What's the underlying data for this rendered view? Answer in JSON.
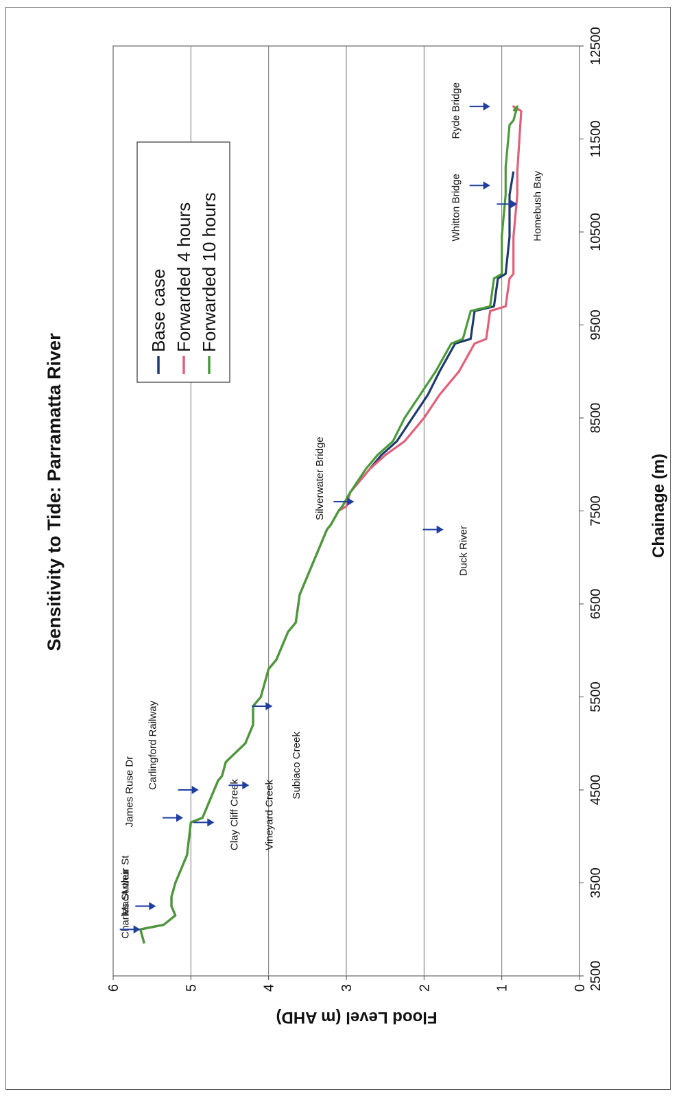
{
  "chart_data": {
    "type": "line",
    "title": "Sensitivity to Tide: Parramatta River",
    "xlabel": "Chainage (m)",
    "ylabel": "Flood Level (m AHD)",
    "xlim": [
      2500,
      12500
    ],
    "ylim": [
      0,
      6
    ],
    "x_ticks": [
      "2500",
      "3500",
      "4500",
      "5500",
      "6500",
      "7500",
      "8500",
      "9500",
      "10500",
      "11500",
      "12500"
    ],
    "y_ticks": [
      "0",
      "1",
      "2",
      "3",
      "4",
      "5",
      "6"
    ],
    "grid": "horizontal",
    "legend": "top-right",
    "colors": {
      "base": "#1f3a6e",
      "fwd4": "#e0607a",
      "fwd10": "#4a9a3a",
      "arrow": "#1f3fa0"
    },
    "series": [
      {
        "name": "Base case",
        "color": "#1f3a6e",
        "x": [
          2850,
          3000,
          3050,
          3150,
          3250,
          3350,
          3500,
          3800,
          4150,
          4200,
          4600,
          4650,
          4800,
          5000,
          5200,
          5400,
          5500,
          5800,
          5900,
          6200,
          6250,
          6300,
          6600,
          7000,
          7300,
          7350,
          7500,
          7550,
          7700,
          7950,
          8100,
          8250,
          8500,
          8750,
          9000,
          9300,
          9350,
          9650,
          9700,
          10000,
          10050,
          10450,
          10900,
          11150
        ],
        "y": [
          5.6,
          5.65,
          5.35,
          5.2,
          5.25,
          5.25,
          5.2,
          5.05,
          5.0,
          4.85,
          4.65,
          4.6,
          4.55,
          4.3,
          4.2,
          4.2,
          4.1,
          4.0,
          3.9,
          3.75,
          3.7,
          3.65,
          3.6,
          3.4,
          3.25,
          3.2,
          3.1,
          3.05,
          2.95,
          2.7,
          2.55,
          2.35,
          2.15,
          1.95,
          1.8,
          1.6,
          1.4,
          1.35,
          1.1,
          1.05,
          0.95,
          0.9,
          0.9,
          0.85
        ]
      },
      {
        "name": "Forwarded 4 hours",
        "color": "#e0607a",
        "x": [
          2850,
          3000,
          3050,
          3150,
          3250,
          3350,
          3500,
          3800,
          4150,
          4200,
          4600,
          4650,
          4800,
          5000,
          5200,
          5400,
          5500,
          5800,
          5900,
          6200,
          6250,
          6300,
          6600,
          7000,
          7300,
          7350,
          7500,
          7550,
          7700,
          7950,
          8100,
          8250,
          8500,
          8750,
          9000,
          9300,
          9350,
          9650,
          9700,
          10000,
          10050,
          10450,
          10900,
          11150,
          11800,
          11850,
          11800
        ],
        "y": [
          5.6,
          5.65,
          5.35,
          5.2,
          5.25,
          5.25,
          5.2,
          5.05,
          5.0,
          4.85,
          4.65,
          4.6,
          4.55,
          4.3,
          4.2,
          4.2,
          4.1,
          4.0,
          3.9,
          3.75,
          3.7,
          3.65,
          3.6,
          3.4,
          3.25,
          3.2,
          3.1,
          3.0,
          2.95,
          2.7,
          2.5,
          2.25,
          2.0,
          1.8,
          1.55,
          1.35,
          1.2,
          1.15,
          0.95,
          0.9,
          0.85,
          0.85,
          0.8,
          0.8,
          0.75,
          0.85,
          0.8
        ]
      },
      {
        "name": "Forwarded 10 hours",
        "color": "#4a9a3a",
        "x": [
          2850,
          3000,
          3050,
          3150,
          3250,
          3350,
          3500,
          3800,
          4150,
          4200,
          4600,
          4650,
          4800,
          5000,
          5200,
          5400,
          5500,
          5800,
          5900,
          6200,
          6250,
          6300,
          6600,
          7000,
          7300,
          7350,
          7500,
          7550,
          7700,
          7950,
          8100,
          8250,
          8500,
          8750,
          9000,
          9300,
          9350,
          9650,
          9700,
          10000,
          10050,
          10450,
          10900,
          11150,
          11200,
          11650,
          11700,
          11850,
          11850,
          11800
        ],
        "y": [
          5.6,
          5.65,
          5.35,
          5.2,
          5.25,
          5.25,
          5.2,
          5.05,
          5.0,
          4.85,
          4.65,
          4.6,
          4.55,
          4.3,
          4.2,
          4.2,
          4.1,
          4.0,
          3.9,
          3.75,
          3.7,
          3.65,
          3.6,
          3.4,
          3.25,
          3.2,
          3.1,
          3.05,
          2.95,
          2.75,
          2.6,
          2.4,
          2.25,
          2.05,
          1.85,
          1.65,
          1.5,
          1.4,
          1.15,
          1.1,
          1.0,
          1.0,
          0.95,
          0.95,
          0.95,
          0.9,
          0.85,
          0.8,
          0.8,
          0.85
        ]
      }
    ],
    "annotations": [
      {
        "text": "Charles St weir",
        "label_x": 2900,
        "label_y": 5.8,
        "arrow_x": 3000,
        "arrow_y": 5.65
      },
      {
        "text": "MacArthur St",
        "label_x": 3150,
        "label_y": 5.8,
        "arrow_x": 3250,
        "arrow_y": 5.45
      },
      {
        "text": "James Ruse Dr",
        "label_x": 4100,
        "label_y": 5.75,
        "arrow_x": 4200,
        "arrow_y": 5.1
      },
      {
        "text": "Carlingford Railway",
        "label_x": 4500,
        "label_y": 5.45,
        "arrow_x": 4500,
        "arrow_y": 4.9
      },
      {
        "text": "Clay Cliff Creek",
        "label_x": 3850,
        "label_y": 4.4,
        "arrow_x": 4150,
        "arrow_y": 4.7
      },
      {
        "text": "Vineyard Creek",
        "label_x": 3850,
        "label_y": 3.95,
        "arrow_x": 4550,
        "arrow_y": 4.25
      },
      {
        "text": "Subiaco Creek",
        "label_x": 4400,
        "label_y": 3.6,
        "arrow_x": 5400,
        "arrow_y": 3.95
      },
      {
        "text": "Silverwater Bridge",
        "label_x": 7400,
        "label_y": 3.3,
        "arrow_x": 7600,
        "arrow_y": 2.9
      },
      {
        "text": "Duck River",
        "label_x": 6800,
        "label_y": 1.45,
        "arrow_x": 7300,
        "arrow_y": 1.75
      },
      {
        "text": "Whitton Bridge",
        "label_x": 10400,
        "label_y": 1.55,
        "arrow_x": 11000,
        "arrow_y": 1.15
      },
      {
        "text": "Homebush Bay",
        "label_x": 10400,
        "label_y": 0.5,
        "arrow_x": 10800,
        "arrow_y": 0.8
      },
      {
        "text": "Ryde Bridge",
        "label_x": 11500,
        "label_y": 1.55,
        "arrow_x": 11850,
        "arrow_y": 1.15
      }
    ]
  }
}
